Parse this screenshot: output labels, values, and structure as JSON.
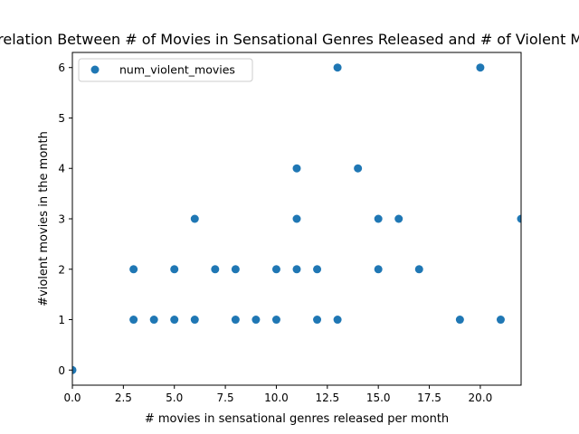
{
  "chart_data": {
    "type": "scatter",
    "title": "Correlation Between # of Movies in Sensational Genres Released and # of Violent Movies",
    "xlabel": "# movies in sensational genres released per month",
    "ylabel": "#violent movies in the month",
    "xlim": [
      0,
      22
    ],
    "ylim": [
      -0.3,
      6.3
    ],
    "xticks": [
      0,
      2.5,
      5,
      7.5,
      10,
      12.5,
      15,
      17.5,
      20
    ],
    "xtick_labels": [
      "0.0",
      "2.5",
      "5.0",
      "7.5",
      "10.0",
      "12.5",
      "15.0",
      "17.5",
      "20.0"
    ],
    "yticks": [
      0,
      1,
      2,
      3,
      4,
      5,
      6
    ],
    "ytick_labels": [
      "0",
      "1",
      "2",
      "3",
      "4",
      "5",
      "6"
    ],
    "grid": false,
    "legend_position": "top-left",
    "series": [
      {
        "name": "num_violent_movies",
        "color": "#1f77b4",
        "points": [
          [
            0,
            0
          ],
          [
            3,
            1
          ],
          [
            3,
            2
          ],
          [
            4,
            1
          ],
          [
            5,
            1
          ],
          [
            5,
            2
          ],
          [
            6,
            1
          ],
          [
            6,
            3
          ],
          [
            7,
            2
          ],
          [
            8,
            1
          ],
          [
            8,
            2
          ],
          [
            9,
            1
          ],
          [
            10,
            1
          ],
          [
            10,
            2
          ],
          [
            11,
            2
          ],
          [
            11,
            3
          ],
          [
            11,
            4
          ],
          [
            12,
            1
          ],
          [
            12,
            2
          ],
          [
            13,
            1
          ],
          [
            13,
            6
          ],
          [
            14,
            4
          ],
          [
            15,
            2
          ],
          [
            15,
            3
          ],
          [
            16,
            3
          ],
          [
            17,
            2
          ],
          [
            19,
            1
          ],
          [
            20,
            6
          ],
          [
            21,
            1
          ],
          [
            22,
            3
          ]
        ]
      }
    ]
  }
}
